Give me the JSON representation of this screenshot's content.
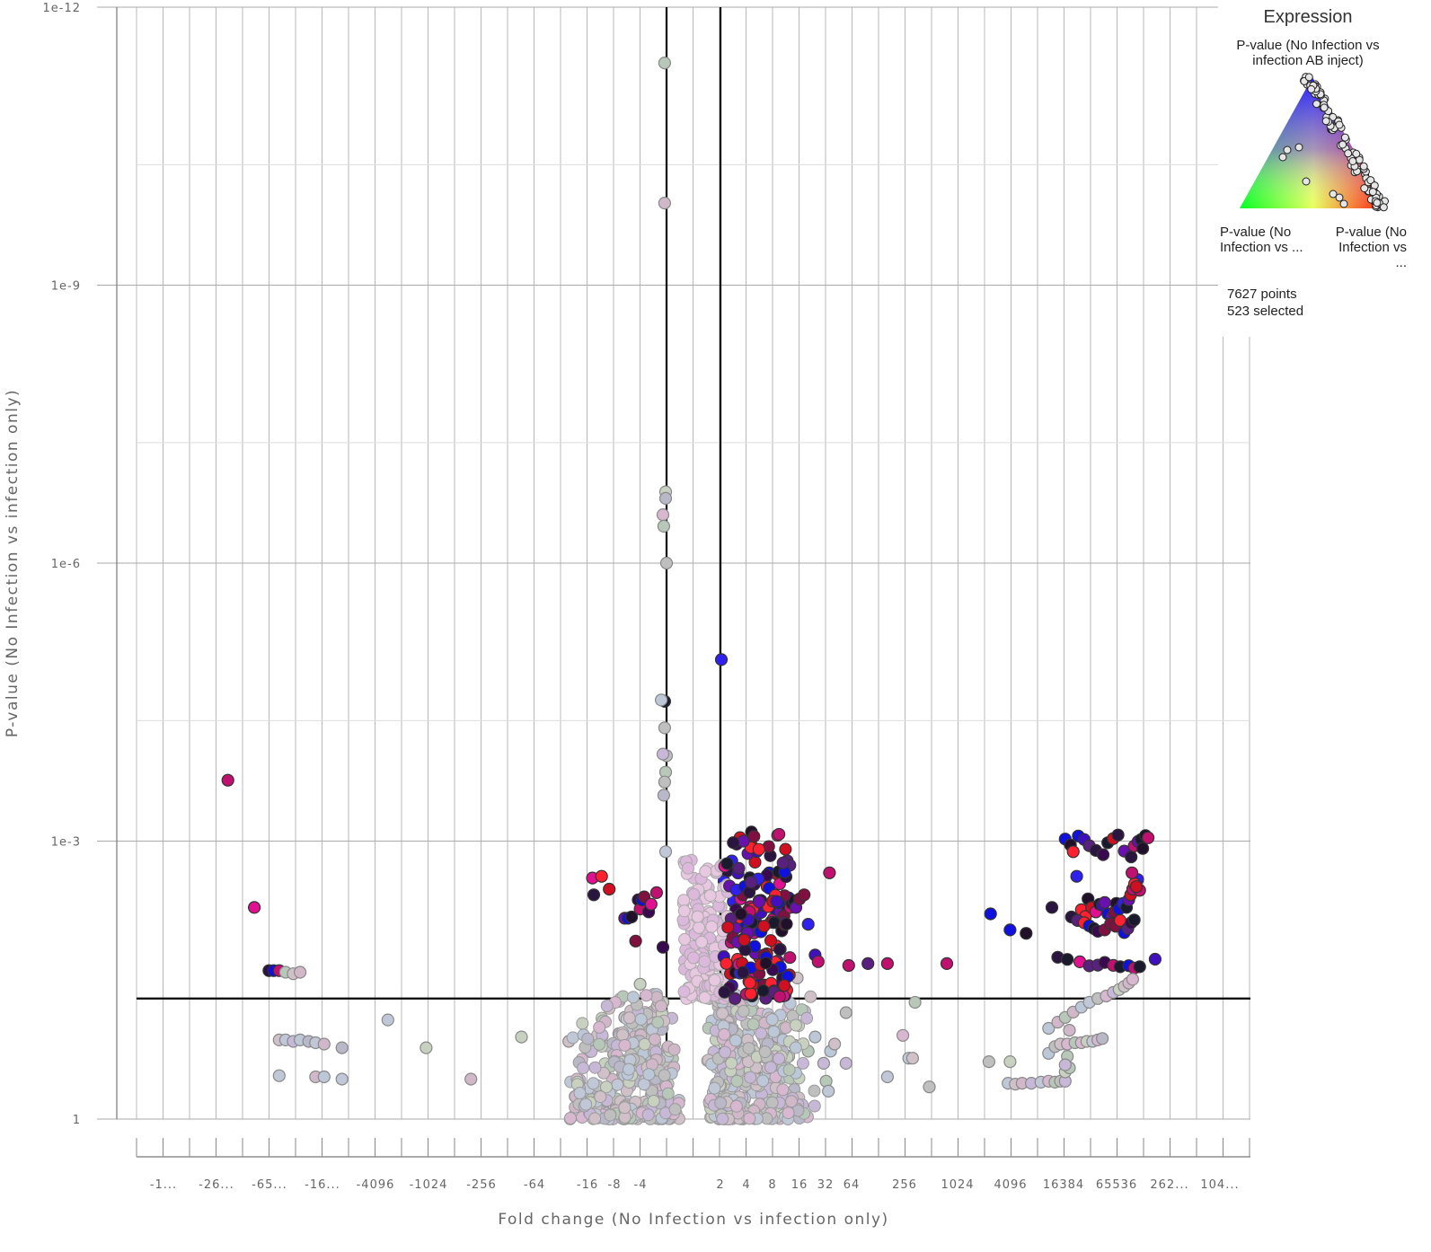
{
  "chart_data": {
    "type": "scatter",
    "title": "",
    "xlabel": "Fold change (No Infection vs infection only)",
    "ylabel": "P-value (No Infection vs infection only)",
    "x_scale": "symmetric log2 fold change",
    "y_scale": "log10, inverted",
    "ylim": [
      1,
      1e-12
    ],
    "y_tick_labels": [
      "1e-12",
      "1e-9",
      "1e-6",
      "1e-3",
      "1"
    ],
    "x_tick_labels": [
      "-1...",
      "-26...",
      "-65...",
      "-16...",
      "-4096",
      "-1024",
      "-256",
      "-64",
      "-16",
      "-8",
      "-4",
      "2",
      "4",
      "8",
      "16",
      "32",
      "64",
      "256",
      "1024",
      "4096",
      "16384",
      "65536",
      "262...",
      "104..."
    ],
    "threshold_lines": {
      "fold_change": [
        -2,
        2
      ],
      "p_value": 0.05
    },
    "grid": true,
    "legend_placement": "top-right",
    "color_encoding": "ternary: blue = P-value (No Infection vs infection AB inject), green / red = the other two comparisons; selected points are drawn saturated, unselected faded",
    "series": [
      {
        "name": "selected",
        "points": [
          [
            -200000,
            0.00022
          ],
          [
            -100000,
            0.0052
          ],
          [
            -68000,
            0.025
          ],
          [
            -60000,
            0.025
          ],
          [
            -52000,
            0.025
          ],
          [
            -14,
            0.0025
          ],
          [
            -13.5,
            0.0038
          ],
          [
            -11,
            0.0024
          ],
          [
            -9,
            0.0033
          ],
          [
            -6,
            0.0068
          ],
          [
            -5.5,
            0.0068
          ],
          [
            -5,
            0.0066
          ],
          [
            -4.5,
            0.012
          ],
          [
            -4.2,
            0.0043
          ],
          [
            -4,
            0.0054
          ],
          [
            -3.8,
            0.0043
          ],
          [
            -3.6,
            0.004
          ],
          [
            -3.2,
            0.0058
          ],
          [
            -3,
            0.0048
          ],
          [
            -2.6,
            0.0036
          ],
          [
            -2.2,
            0.014
          ],
          [
            -2.1,
            3.1e-05
          ],
          [
            2.05,
            1.1e-05
          ],
          [
            2.2,
            0.0027
          ],
          [
            2.4,
            0.0021
          ],
          [
            2.6,
            0.0032
          ],
          [
            2.8,
            0.0045
          ],
          [
            3,
            0.0055
          ],
          [
            3.2,
            0.0065
          ],
          [
            3.4,
            0.0042
          ],
          [
            3.6,
            0.0038
          ],
          [
            3.8,
            0.0075
          ],
          [
            4,
            0.0095
          ],
          [
            4.2,
            0.0088
          ],
          [
            4.4,
            0.0051
          ],
          [
            4.6,
            0.0062
          ],
          [
            4.8,
            0.0098
          ],
          [
            5,
            0.0072
          ],
          [
            5.2,
            0.0082
          ],
          [
            5.5,
            0.0044
          ],
          [
            5.8,
            0.0059
          ],
          [
            6,
            0.0049
          ],
          [
            6.4,
            0.0027
          ],
          [
            6.8,
            0.0031
          ],
          [
            7.2,
            0.0022
          ],
          [
            7.5,
            0.0075
          ],
          [
            8,
            0.0069
          ],
          [
            8.5,
            0.0054
          ],
          [
            9,
            0.0023
          ],
          [
            9.6,
            0.0058
          ],
          [
            10,
            0.0093
          ],
          [
            10.6,
            0.0064
          ],
          [
            11,
            0.0048
          ],
          [
            12,
            0.0041
          ],
          [
            12.5,
            0.0052
          ],
          [
            13,
            0.0047
          ],
          [
            13.8,
            0.0044
          ],
          [
            14.5,
            0.0052
          ],
          [
            16,
            0.0042
          ],
          [
            18,
            0.0038
          ],
          [
            20,
            0.0079
          ],
          [
            24,
            0.017
          ],
          [
            26,
            0.02
          ],
          [
            35,
            0.0022
          ],
          [
            58,
            0.022
          ],
          [
            96,
            0.021
          ],
          [
            160,
            0.021
          ],
          [
            760,
            0.021
          ],
          [
            2400,
            0.0061
          ],
          [
            4000,
            0.0091
          ],
          [
            6100,
            0.0099
          ],
          [
            12000,
            0.0052
          ],
          [
            17000,
            0.00095
          ],
          [
            19500,
            0.0011
          ],
          [
            21000,
            0.0013
          ],
          [
            23000,
            0.0024
          ],
          [
            26000,
            0.0055
          ],
          [
            29000,
            0.0065
          ],
          [
            31000,
            0.0042
          ],
          [
            34000,
            0.0052
          ],
          [
            38000,
            0.0058
          ],
          [
            42000,
            0.0048
          ],
          [
            45000,
            0.0049
          ],
          [
            48000,
            0.0046
          ],
          [
            52000,
            0.0061
          ],
          [
            58000,
            0.0066
          ],
          [
            62000,
            0.0058
          ],
          [
            65000,
            0.0047
          ],
          [
            70000,
            0.0054
          ],
          [
            78000,
            0.0047
          ],
          [
            85000,
            0.0052
          ],
          [
            90000,
            0.0043
          ],
          [
            95000,
            0.0038
          ],
          [
            100000,
            0.0033
          ],
          [
            108000,
            0.0028
          ],
          [
            114000,
            0.0026
          ],
          [
            120000,
            0.0034
          ],
          [
            105000,
            0.0029
          ],
          [
            110000,
            0.0031
          ],
          [
            98000,
            0.0022
          ],
          [
            20000,
            0.0066
          ],
          [
            23500,
            0.0072
          ],
          [
            28000,
            0.0076
          ],
          [
            32000,
            0.0082
          ],
          [
            36000,
            0.0088
          ],
          [
            40000,
            0.0094
          ],
          [
            48000,
            0.0091
          ],
          [
            56000,
            0.0078
          ],
          [
            64000,
            0.0083
          ],
          [
            72000,
            0.0072
          ],
          [
            80000,
            0.0097
          ],
          [
            88000,
            0.0088
          ],
          [
            96000,
            0.0076
          ],
          [
            104000,
            0.0071
          ],
          [
            14000,
            0.0179
          ],
          [
            18000,
            0.0189
          ],
          [
            25000,
            0.0201
          ],
          [
            32000,
            0.0222
          ],
          [
            40000,
            0.0218
          ],
          [
            48000,
            0.0204
          ],
          [
            60000,
            0.0219
          ],
          [
            72000,
            0.0227
          ],
          [
            90000,
            0.0221
          ],
          [
            104000,
            0.0235
          ],
          [
            120000,
            0.0227
          ],
          [
            180000,
            0.0188
          ],
          [
            24000,
            0.00088
          ],
          [
            28000,
            0.00096
          ],
          [
            32000,
            0.00112
          ],
          [
            38000,
            0.00126
          ],
          [
            46000,
            0.0014
          ],
          [
            52000,
            0.00104
          ],
          [
            60000,
            0.00094
          ],
          [
            68000,
            0.00086
          ],
          [
            80000,
            0.00128
          ],
          [
            96000,
            0.00148
          ],
          [
            104000,
            0.00113
          ],
          [
            115000,
            0.00101
          ],
          [
            125000,
            0.00096
          ],
          [
            140000,
            0.00087
          ],
          [
            150000,
            0.00092
          ],
          [
            130000,
            0.0012
          ]
        ]
      },
      {
        "name": "unselected",
        "points": [
          [
            -2.1,
            4e-12
          ],
          [
            -2.1,
            1.3e-10
          ],
          [
            -2.05,
            1.7e-07
          ],
          [
            -2.05,
            2e-07
          ],
          [
            -2.2,
            3e-07
          ],
          [
            -2.15,
            4e-07
          ],
          [
            -2,
            1e-06
          ],
          [
            -2.3,
            3e-05
          ],
          [
            -2.1,
            6e-05
          ],
          [
            -2,
            0.00012
          ],
          [
            -2.2,
            0.000115
          ],
          [
            -2.05,
            0.00018
          ],
          [
            -2.1,
            0.00023
          ],
          [
            -2.15,
            0.00032
          ],
          [
            -2.05,
            0.0013
          ],
          [
            -44000,
            0.026
          ],
          [
            -36000,
            0.027
          ],
          [
            -30000,
            0.026
          ],
          [
            -52000,
            0.14
          ],
          [
            -44000,
            0.14
          ],
          [
            -36000,
            0.145
          ],
          [
            -30000,
            0.14
          ],
          [
            -24000,
            0.145
          ],
          [
            -20000,
            0.15
          ],
          [
            -16000,
            0.155
          ],
          [
            -10000,
            0.17
          ],
          [
            -52000,
            0.34
          ],
          [
            -20000,
            0.35
          ],
          [
            -16000,
            0.35
          ],
          [
            -10000,
            0.37
          ],
          [
            -3000,
            0.085
          ],
          [
            -1100,
            0.17
          ],
          [
            -90,
            0.13
          ],
          [
            -340,
            0.37
          ],
          [
            -26,
            0.145
          ],
          [
            -22,
            0.57
          ],
          [
            -16,
            0.6
          ],
          [
            -12,
            0.55
          ],
          [
            -10,
            0.3
          ],
          [
            -8,
            0.2
          ],
          [
            -7,
            0.12
          ],
          [
            -6,
            0.08
          ],
          [
            -5,
            0.16
          ],
          [
            -4.5,
            0.24
          ],
          [
            -4,
            0.035
          ],
          [
            -3.5,
            0.18
          ],
          [
            -3,
            0.29
          ],
          [
            -2.8,
            0.42
          ],
          [
            -2.5,
            0.6
          ],
          [
            -2.2,
            0.055
          ],
          [
            -2,
            0.6
          ],
          [
            2,
            0.55
          ],
          [
            2.3,
            0.35
          ],
          [
            2.6,
            0.11
          ],
          [
            3,
            0.6
          ],
          [
            3.3,
            0.27
          ],
          [
            3.8,
            0.18
          ],
          [
            4.2,
            0.06
          ],
          [
            4.6,
            0.48
          ],
          [
            5,
            0.23
          ],
          [
            5.6,
            0.085
          ],
          [
            6,
            0.36
          ],
          [
            6.6,
            0.17
          ],
          [
            7,
            0.04
          ],
          [
            8,
            0.55
          ],
          [
            8.5,
            0.26
          ],
          [
            9,
            0.13
          ],
          [
            10,
            0.32
          ],
          [
            11,
            0.045
          ],
          [
            12,
            0.21
          ],
          [
            13,
            0.6
          ],
          [
            14,
            0.16
          ],
          [
            15,
            0.03
          ],
          [
            20,
            0.185
          ],
          [
            24,
            0.13
          ],
          [
            30,
            0.25
          ],
          [
            32,
            0.39
          ],
          [
            34,
            0.5
          ],
          [
            36,
            0.185
          ],
          [
            40,
            0.155
          ],
          [
            54,
            0.071
          ],
          [
            54,
            0.25
          ],
          [
            160,
            0.35
          ],
          [
            240,
            0.125
          ],
          [
            280,
            0.22
          ],
          [
            310,
            0.22
          ],
          [
            330,
            0.055
          ],
          [
            480,
            0.45
          ],
          [
            2300,
            0.24
          ],
          [
            4000,
            0.24
          ],
          [
            3800,
            0.41
          ],
          [
            4600,
            0.42
          ],
          [
            5500,
            0.41
          ],
          [
            7000,
            0.41
          ],
          [
            9000,
            0.4
          ],
          [
            11000,
            0.39
          ],
          [
            13000,
            0.4
          ],
          [
            15000,
            0.39
          ],
          [
            17000,
            0.39
          ],
          [
            17000,
            0.31
          ],
          [
            11000,
            0.195
          ],
          [
            13000,
            0.165
          ],
          [
            15000,
            0.155
          ],
          [
            18000,
            0.155
          ],
          [
            22000,
            0.15
          ],
          [
            26000,
            0.15
          ],
          [
            30000,
            0.145
          ],
          [
            35000,
            0.145
          ],
          [
            40000,
            0.14
          ],
          [
            45000,
            0.135
          ],
          [
            11000,
            0.105
          ],
          [
            14000,
            0.09
          ],
          [
            17000,
            0.08
          ],
          [
            21000,
            0.07
          ],
          [
            26000,
            0.062
          ],
          [
            32000,
            0.055
          ],
          [
            40000,
            0.05
          ],
          [
            50000,
            0.047
          ],
          [
            60000,
            0.043
          ],
          [
            70000,
            0.04
          ],
          [
            80000,
            0.037
          ],
          [
            90000,
            0.034
          ],
          [
            100000,
            0.031
          ],
          [
            19000,
            0.28
          ],
          [
            18000,
            0.21
          ],
          [
            17000,
            0.26
          ],
          [
            19000,
            0.11
          ]
        ]
      }
    ]
  },
  "legend": {
    "title": "Expression",
    "top_label": "P-value (No Infection vs infection AB inject)",
    "left_label": "P-value (No Infection vs ...",
    "right_label": "P-value (No Infection vs ...",
    "points": "7627 points",
    "selected": "523 selected"
  }
}
